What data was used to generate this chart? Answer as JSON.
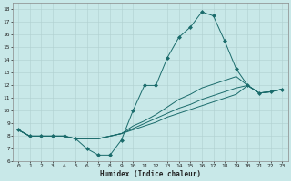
{
  "xlabel": "Humidex (Indice chaleur)",
  "xlim": [
    -0.5,
    23.5
  ],
  "ylim": [
    6,
    18.5
  ],
  "yticks": [
    6,
    7,
    8,
    9,
    10,
    11,
    12,
    13,
    14,
    15,
    16,
    17,
    18
  ],
  "xticks": [
    0,
    1,
    2,
    3,
    4,
    5,
    6,
    7,
    8,
    9,
    10,
    11,
    12,
    13,
    14,
    15,
    16,
    17,
    18,
    19,
    20,
    21,
    22,
    23
  ],
  "bg_color": "#c8e8e8",
  "line_color": "#1a6b6b",
  "grid_color": "#b0d0d0",
  "curves": [
    {
      "x": [
        0,
        1,
        2,
        3,
        4,
        5,
        6,
        7,
        8,
        9,
        10,
        11,
        12,
        13,
        14,
        15,
        16,
        17,
        18,
        19,
        20,
        21,
        22,
        23
      ],
      "y": [
        8.5,
        8.0,
        8.0,
        8.0,
        8.0,
        7.8,
        7.0,
        6.5,
        6.5,
        7.7,
        10.0,
        12.0,
        12.0,
        14.2,
        15.8,
        16.6,
        17.8,
        17.5,
        15.5,
        13.3,
        12.0,
        11.4,
        11.5,
        11.7
      ],
      "marker": "D",
      "markersize": 2.0
    },
    {
      "x": [
        0,
        1,
        2,
        3,
        4,
        5,
        6,
        7,
        8,
        9,
        10,
        11,
        12,
        13,
        14,
        15,
        16,
        17,
        18,
        19,
        20,
        21,
        22,
        23
      ],
      "y": [
        8.5,
        8.0,
        8.0,
        8.0,
        8.0,
        7.8,
        7.8,
        7.8,
        8.0,
        8.2,
        8.8,
        9.2,
        9.7,
        10.3,
        10.9,
        11.3,
        11.8,
        12.1,
        12.4,
        12.7,
        12.0,
        11.4,
        11.5,
        11.7
      ],
      "marker": null,
      "markersize": 0
    },
    {
      "x": [
        0,
        1,
        2,
        3,
        4,
        5,
        6,
        7,
        8,
        9,
        10,
        11,
        12,
        13,
        14,
        15,
        16,
        17,
        18,
        19,
        20,
        21,
        22,
        23
      ],
      "y": [
        8.5,
        8.0,
        8.0,
        8.0,
        8.0,
        7.8,
        7.8,
        7.8,
        8.0,
        8.2,
        8.6,
        9.0,
        9.4,
        9.8,
        10.2,
        10.5,
        10.9,
        11.2,
        11.5,
        11.8,
        12.0,
        11.4,
        11.5,
        11.7
      ],
      "marker": null,
      "markersize": 0
    },
    {
      "x": [
        0,
        1,
        2,
        3,
        4,
        5,
        6,
        7,
        8,
        9,
        10,
        11,
        12,
        13,
        14,
        15,
        16,
        17,
        18,
        19,
        20,
        21,
        22,
        23
      ],
      "y": [
        8.5,
        8.0,
        8.0,
        8.0,
        8.0,
        7.8,
        7.8,
        7.8,
        8.0,
        8.2,
        8.5,
        8.8,
        9.1,
        9.5,
        9.8,
        10.1,
        10.4,
        10.7,
        11.0,
        11.3,
        12.0,
        11.4,
        11.5,
        11.7
      ],
      "marker": null,
      "markersize": 0
    }
  ]
}
